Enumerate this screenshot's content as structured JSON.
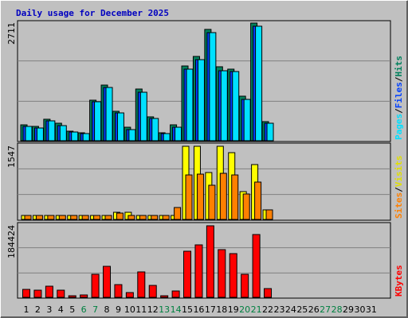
{
  "chart_data": [
    {
      "type": "bar",
      "title": "Daily usage for December 2025",
      "title_color": "#0000c0",
      "ylim": [
        0,
        2711
      ],
      "yticks": [
        2711
      ],
      "legend_separator": "/",
      "series": [
        {
          "name": "Pages",
          "color": "#00e0ff",
          "values": [
            330,
            293,
            458,
            348,
            201,
            165,
            898,
            1227,
            641,
            256,
            1117,
            513,
            165,
            311,
            1649,
            1868,
            2491,
            1612,
            1594,
            952,
            2638,
            403,
            0,
            0,
            0,
            0,
            0,
            0,
            0,
            0,
            0
          ]
        },
        {
          "name": "Files",
          "color": "#0040ff",
          "values": [
            330,
            293,
            458,
            348,
            201,
            165,
            898,
            1227,
            641,
            256,
            1117,
            513,
            165,
            311,
            1649,
            1868,
            2491,
            1612,
            1594,
            952,
            2638,
            403,
            0,
            0,
            0,
            0,
            0,
            0,
            0,
            0,
            0
          ]
        },
        {
          "name": "Hits",
          "color": "#00805c",
          "values": [
            366,
            330,
            495,
            403,
            220,
            183,
            934,
            1282,
            678,
            311,
            1191,
            550,
            183,
            366,
            1722,
            1942,
            2565,
            1704,
            1649,
            1026,
            2711,
            440,
            0,
            0,
            0,
            0,
            0,
            0,
            0,
            0,
            0
          ]
        }
      ]
    },
    {
      "type": "bar",
      "ylim": [
        0,
        1547
      ],
      "yticks": [
        1547
      ],
      "legend_separator": "/",
      "series": [
        {
          "name": "Sites",
          "color": "#ff8000",
          "values": [
            84,
            84,
            84,
            84,
            84,
            84,
            84,
            84,
            134,
            84,
            84,
            84,
            84,
            252,
            941,
            958,
            723,
            975,
            941,
            538,
            790,
            202,
            0,
            0,
            0,
            0,
            0,
            0,
            0,
            0,
            0
          ]
        },
        {
          "name": "Visits",
          "color": "#ffff00",
          "values": [
            84,
            84,
            84,
            84,
            84,
            84,
            84,
            84,
            151,
            151,
            84,
            84,
            84,
            84,
            1547,
            1547,
            992,
            1547,
            1412,
            588,
            1160,
            202,
            0,
            0,
            0,
            0,
            0,
            0,
            0,
            0,
            0
          ]
        }
      ]
    },
    {
      "type": "bar",
      "ylim": [
        0,
        184424
      ],
      "yticks": [
        184424
      ],
      "series": [
        {
          "name": "KBytes",
          "color": "#ff0000",
          "values": [
            20492,
            18442,
            28688,
            18442,
            4098,
            6147,
            59426,
            79918,
            32786,
            12295,
            65573,
            30737,
            4098,
            16393,
            118852,
            135246,
            184424,
            122951,
            112705,
            59426,
            161880,
            22541,
            0,
            0,
            0,
            0,
            0,
            0,
            0,
            0,
            0
          ]
        }
      ],
      "categories": [
        "1",
        "2",
        "3",
        "4",
        "5",
        "6",
        "7",
        "8",
        "9",
        "10",
        "11",
        "12",
        "13",
        "14",
        "15",
        "16",
        "17",
        "18",
        "19",
        "20",
        "21",
        "22",
        "23",
        "24",
        "25",
        "26",
        "27",
        "28",
        "29",
        "30",
        "31"
      ],
      "category_colors": [
        "#000000",
        "#000000",
        "#000000",
        "#000000",
        "#000000",
        "#008040",
        "#008040",
        "#000000",
        "#000000",
        "#000000",
        "#000000",
        "#000000",
        "#008040",
        "#008040",
        "#000000",
        "#000000",
        "#000000",
        "#000000",
        "#000000",
        "#008040",
        "#008040",
        "#000000",
        "#000000",
        "#000000",
        "#000000",
        "#000000",
        "#008040",
        "#008040",
        "#000000",
        "#000000",
        "#000000"
      ]
    }
  ]
}
